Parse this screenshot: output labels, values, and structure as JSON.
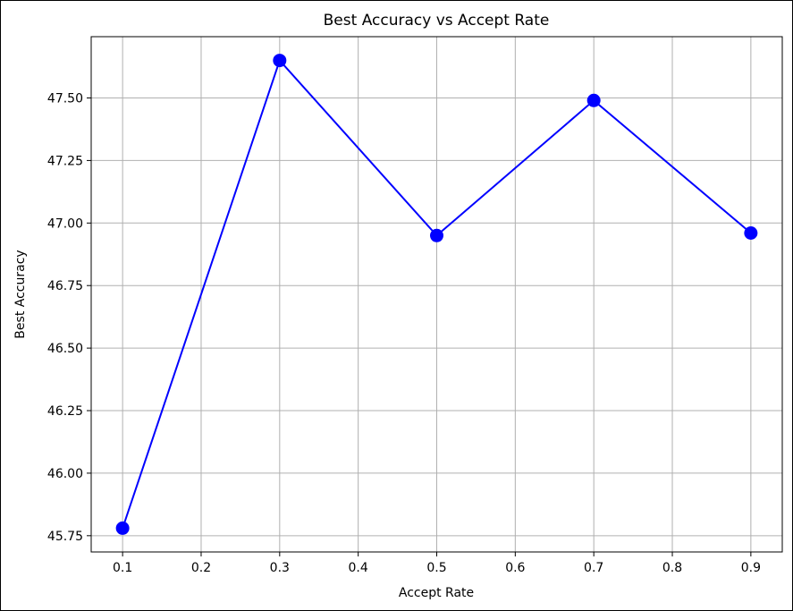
{
  "chart_data": {
    "type": "line",
    "title": "Best Accuracy vs Accept Rate",
    "xlabel": "Accept Rate",
    "ylabel": "Best Accuracy",
    "x": [
      0.1,
      0.3,
      0.5,
      0.7,
      0.9
    ],
    "series": [
      {
        "values": [
          45.78,
          47.65,
          46.95,
          47.49,
          46.96
        ],
        "color": "#0000ff",
        "marker": "circle"
      }
    ],
    "xlim": [
      0.06,
      0.94
    ],
    "ylim": [
      45.685,
      47.745
    ],
    "xticks": [
      0.1,
      0.2,
      0.3,
      0.4,
      0.5,
      0.6,
      0.7,
      0.8,
      0.9
    ],
    "xtick_labels": [
      "0.1",
      "0.2",
      "0.3",
      "0.4",
      "0.5",
      "0.6",
      "0.7",
      "0.8",
      "0.9"
    ],
    "yticks": [
      45.75,
      46.0,
      46.25,
      46.5,
      46.75,
      47.0,
      47.25,
      47.5
    ],
    "ytick_labels": [
      "45.75",
      "46.00",
      "46.25",
      "46.50",
      "46.75",
      "47.00",
      "47.25",
      "47.50"
    ],
    "grid": true,
    "legend": false
  }
}
